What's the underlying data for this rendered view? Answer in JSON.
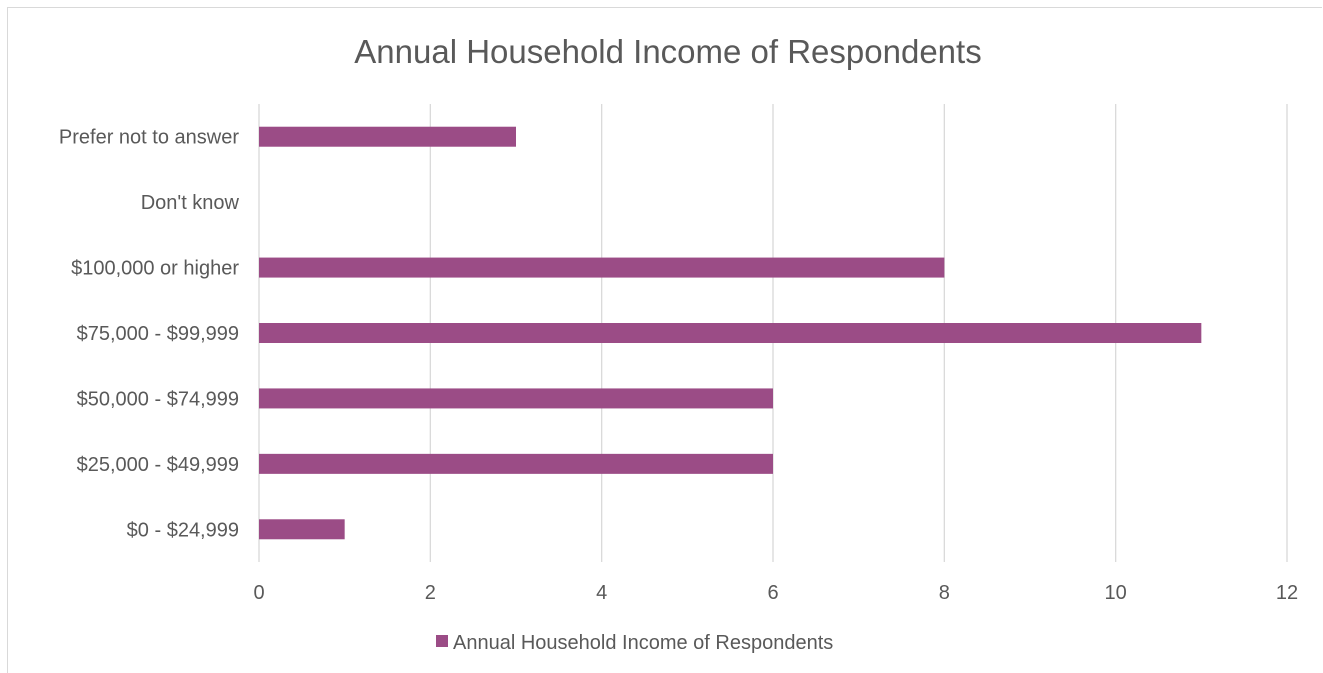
{
  "chart_data": {
    "type": "bar",
    "orientation": "horizontal",
    "title": "Annual Household Income of Respondents",
    "categories": [
      "$0 - $24,999",
      "$25,000 - $49,999",
      "$50,000 - $74,999",
      "$75,000 - $99,999",
      "$100,000 or higher",
      "Don't know",
      "Prefer not to answer"
    ],
    "series": [
      {
        "name": "Annual Household Income of Respondents",
        "values": [
          1,
          6,
          6,
          11,
          8,
          0,
          3
        ]
      }
    ],
    "xlim": [
      0,
      12
    ],
    "xticks": [
      "0",
      "2",
      "4",
      "6",
      "8",
      "10",
      "12"
    ],
    "grid": true,
    "legend_position": "bottom",
    "colors": {
      "bar": "#9b4c86",
      "grid": "#d9d9d9",
      "text": "#595959",
      "border": "#d9d9d9"
    }
  }
}
